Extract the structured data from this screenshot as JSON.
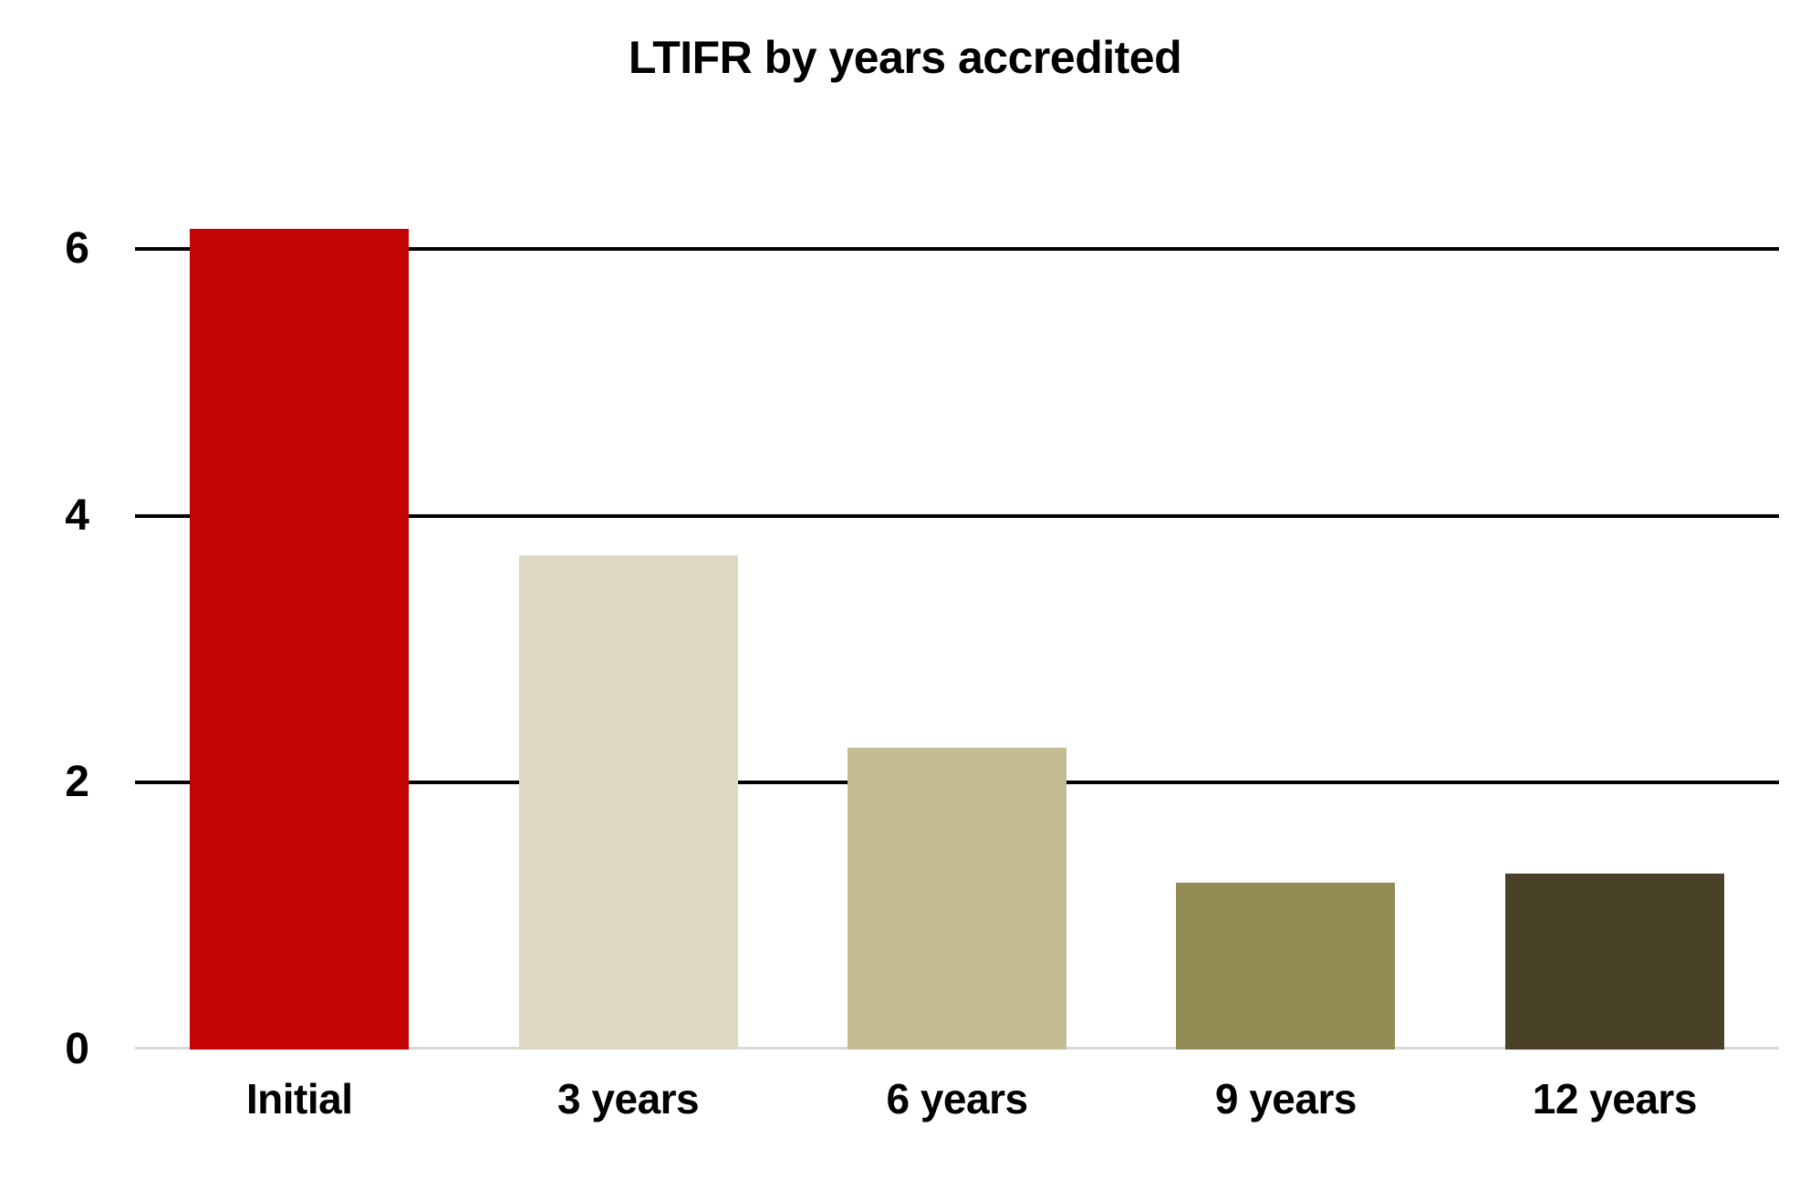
{
  "chart_data": {
    "type": "bar",
    "title": "LTIFR by years accredited",
    "categories": [
      "Initial",
      "3 years",
      "6 years",
      "9 years",
      "12 years"
    ],
    "values": [
      6.15,
      3.7,
      2.26,
      1.25,
      1.32
    ],
    "bar_colors": [
      "#c40404",
      "#ddd8c2",
      "#c5bc94",
      "#938c55",
      "#494228"
    ],
    "xlabel": "",
    "ylabel": "",
    "yticks": [
      0,
      2,
      4,
      6
    ],
    "ylim": [
      0,
      6.6
    ],
    "grid": "horizontal gridlines at ticks, drawn behind bars",
    "gridline_color": "#000000",
    "baseline_color": "#d9d9d9",
    "background_color": "#ffffff",
    "text_color": "#000000",
    "legend_position": "none"
  }
}
